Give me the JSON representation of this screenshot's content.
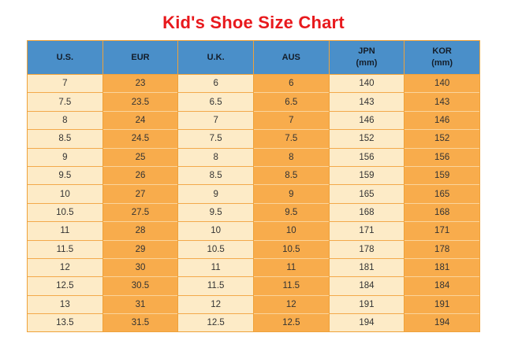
{
  "title": {
    "text": "Kid's Shoe Size Chart"
  },
  "colors": {
    "title-red": "#e8191d",
    "header-blue": "#4a8fc9",
    "header-text": "#141d29",
    "cell-cream": "#fdebc7",
    "cell-orange": "#f8ac4c",
    "grid-border": "#efa23a",
    "row-line-cream": "#f3a94b",
    "row-line-orange": "#fbd49b",
    "body-text": "#333333",
    "page-bg": "#ffffff"
  },
  "chart_data": {
    "type": "table",
    "title": "Kid's Shoe Size Chart",
    "columns": [
      {
        "label": "U.S.",
        "sub": ""
      },
      {
        "label": "EUR",
        "sub": ""
      },
      {
        "label": "U.K.",
        "sub": ""
      },
      {
        "label": "AUS",
        "sub": ""
      },
      {
        "label": "JPN",
        "sub": "(mm)"
      },
      {
        "label": "KOR",
        "sub": "(mm)"
      }
    ],
    "rows": [
      [
        "7",
        "23",
        "6",
        "6",
        "140",
        "140"
      ],
      [
        "7.5",
        "23.5",
        "6.5",
        "6.5",
        "143",
        "143"
      ],
      [
        "8",
        "24",
        "7",
        "7",
        "146",
        "146"
      ],
      [
        "8.5",
        "24.5",
        "7.5",
        "7.5",
        "152",
        "152"
      ],
      [
        "9",
        "25",
        "8",
        "8",
        "156",
        "156"
      ],
      [
        "9.5",
        "26",
        "8.5",
        "8.5",
        "159",
        "159"
      ],
      [
        "10",
        "27",
        "9",
        "9",
        "165",
        "165"
      ],
      [
        "10.5",
        "27.5",
        "9.5",
        "9.5",
        "168",
        "168"
      ],
      [
        "11",
        "28",
        "10",
        "10",
        "171",
        "171"
      ],
      [
        "11.5",
        "29",
        "10.5",
        "10.5",
        "178",
        "178"
      ],
      [
        "12",
        "30",
        "11",
        "11",
        "181",
        "181"
      ],
      [
        "12.5",
        "30.5",
        "11.5",
        "11.5",
        "184",
        "184"
      ],
      [
        "13",
        "31",
        "12",
        "12",
        "191",
        "191"
      ],
      [
        "13.5",
        "31.5",
        "12.5",
        "12.5",
        "194",
        "194"
      ]
    ]
  }
}
